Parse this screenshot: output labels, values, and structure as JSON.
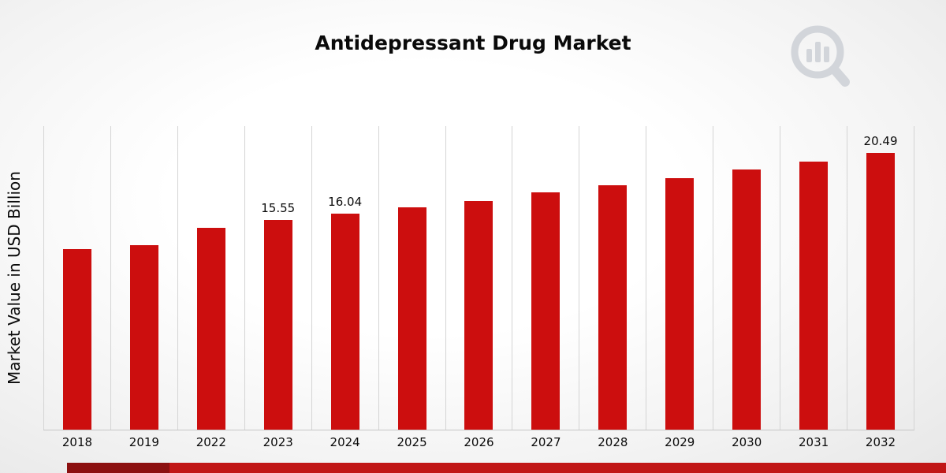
{
  "title": "Antidepressant Drug Market",
  "ylabel": "Market Value in USD Billion",
  "logo_name": "market-research-bar-chart-magnifier-logo",
  "accent_color": "#c11616",
  "chart_data": {
    "type": "bar",
    "title": "Antidepressant Drug Market",
    "xlabel": "",
    "ylabel": "Market Value in USD Billion",
    "categories": [
      "2018",
      "2019",
      "2022",
      "2023",
      "2024",
      "2025",
      "2026",
      "2027",
      "2028",
      "2029",
      "2030",
      "2031",
      "2032"
    ],
    "values": [
      13.4,
      13.7,
      14.95,
      15.55,
      16.04,
      16.5,
      16.95,
      17.6,
      18.1,
      18.65,
      19.3,
      19.85,
      20.49
    ],
    "value_labels": [
      "",
      "",
      "",
      "15.55",
      "16.04",
      "",
      "",
      "",
      "",
      "",
      "",
      "",
      "20.49"
    ],
    "bar_color": "#cc0e0e",
    "ylim": [
      0,
      22.5
    ],
    "grid": "vertical-only",
    "legend": "none",
    "unit": "USD Billion"
  }
}
